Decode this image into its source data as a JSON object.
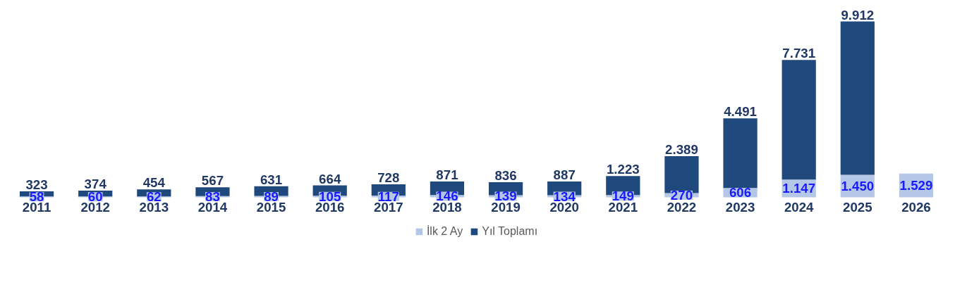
{
  "chart_data": {
    "type": "bar",
    "stacked": true,
    "legend": "bottom",
    "grid": false,
    "categories": [
      "2011",
      "2012",
      "2013",
      "2014",
      "2015",
      "2016",
      "2017",
      "2018",
      "2019",
      "2020",
      "2021",
      "2022",
      "2023",
      "2024",
      "2025",
      "2026"
    ],
    "series": [
      {
        "name": "İlk 2 Ay",
        "color": "#b4c7e7",
        "values": [
          58,
          60,
          62,
          83,
          89,
          105,
          117,
          146,
          139,
          134,
          149,
          270,
          606,
          1147,
          1450,
          1529
        ],
        "value_labels": [
          "58",
          "60",
          "62",
          "83",
          "89",
          "105",
          "117",
          "146",
          "139",
          "134",
          "149",
          "270",
          "606",
          "1.147",
          "1.450",
          "1.529"
        ]
      },
      {
        "name": "Yıl Toplamı",
        "color": "#1f497d",
        "values": [
          323,
          374,
          454,
          567,
          631,
          664,
          728,
          871,
          836,
          887,
          1223,
          2389,
          4491,
          7731,
          9912,
          null
        ],
        "value_labels": [
          "323",
          "374",
          "454",
          "567",
          "631",
          "664",
          "728",
          "871",
          "836",
          "887",
          "1.223",
          "2.389",
          "4.491",
          "7.731",
          "9.912",
          null
        ]
      }
    ]
  }
}
